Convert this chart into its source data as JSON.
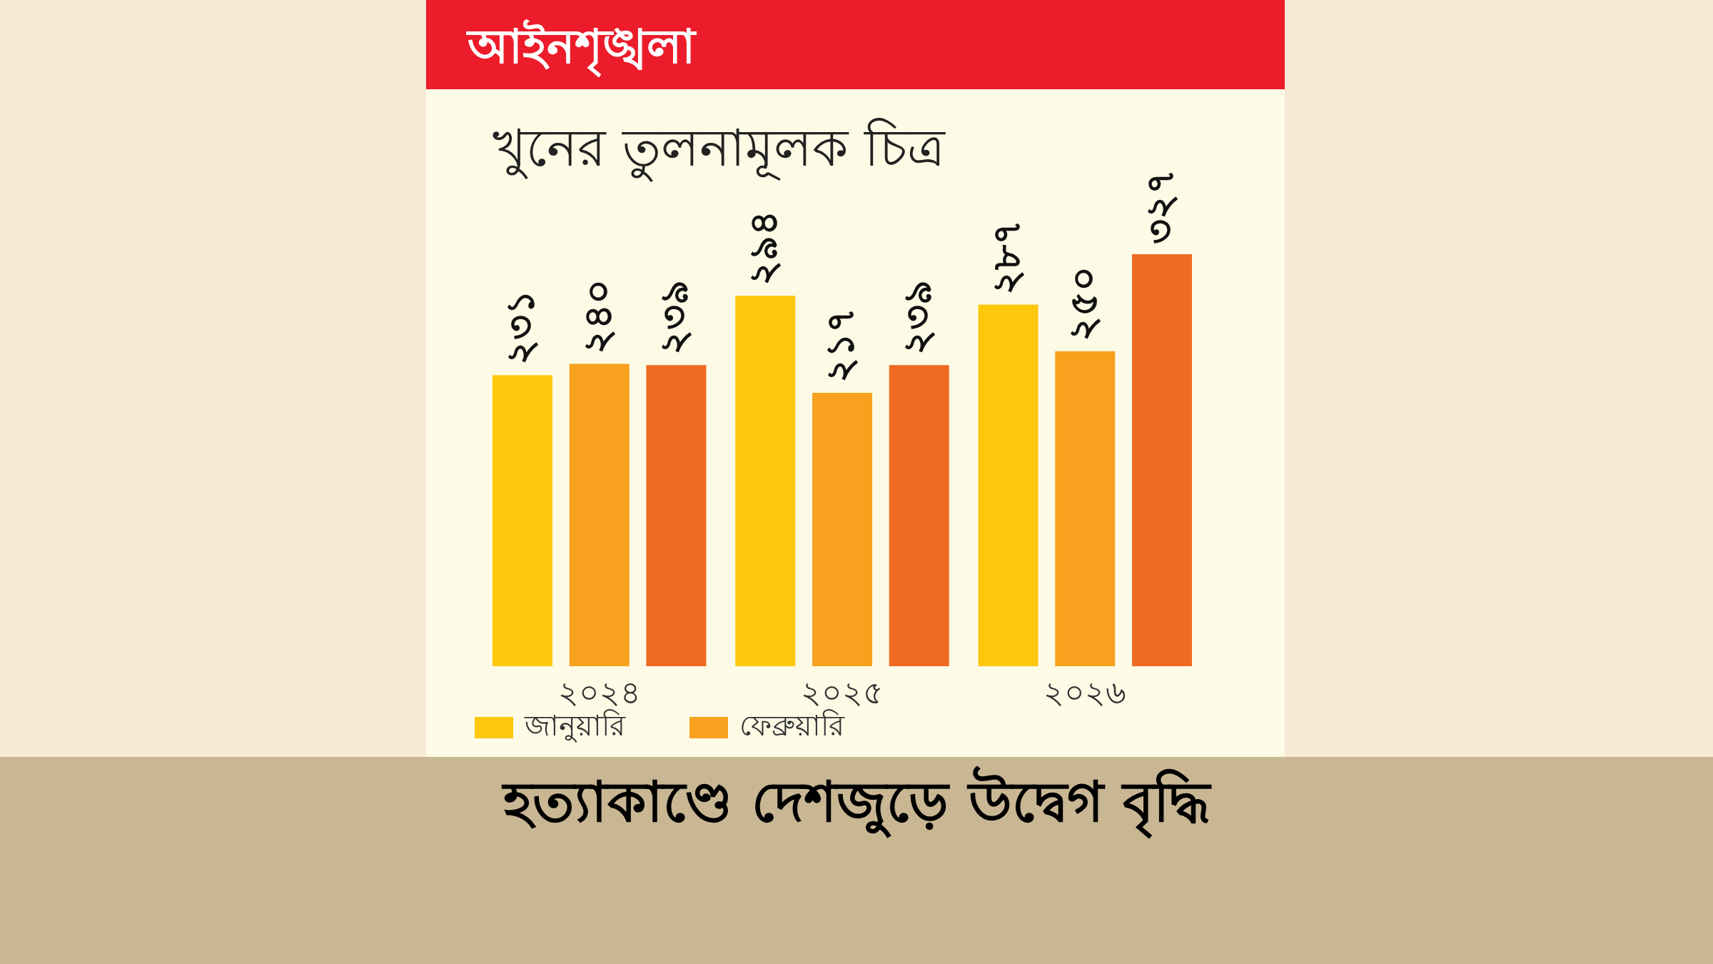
{
  "chart_data": {
    "type": "bar",
    "title": "খুনের তুলনামূলক চিত্র",
    "annotations": [
      "আইনশৃঙ্খলা",
      "হত্যাকাণ্ডে দেশজুড়ে উদ্বেগ বৃদ্ধি"
    ],
    "categories": [
      "২০২৪",
      "২০২৫",
      "২০২৬"
    ],
    "series": [
      {
        "name": "জানুয়ারি",
        "color": "#fdc70c",
        "values": [
          231,
          294,
          287
        ],
        "value_labels": [
          "২৩১",
          "২৯৪",
          "২৮৭"
        ]
      },
      {
        "name": "ফেব্রুয়ারি",
        "color": "#f7a11f",
        "values": [
          240,
          217,
          250
        ],
        "value_labels": [
          "২৪০",
          "২১৭",
          "২৫০"
        ]
      },
      {
        "color": "#ef6a22",
        "values": [
          239,
          239,
          327
        ],
        "value_labels": [
          "২৩৯",
          "২৩৯",
          "৩২৭"
        ]
      }
    ],
    "legend": "bottom"
  }
}
